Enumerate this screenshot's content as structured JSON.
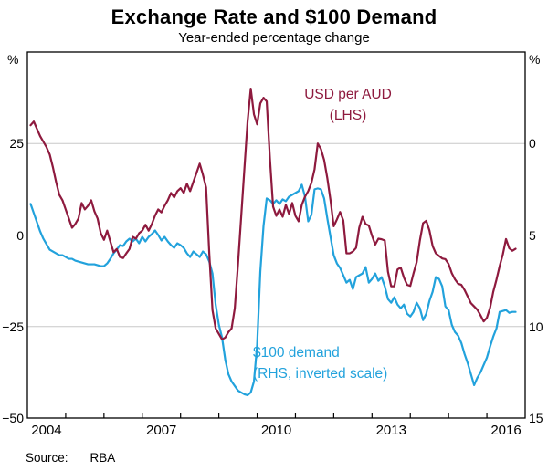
{
  "title": "Exchange Rate and $100 Demand",
  "subtitle": "Year-ended percentage change",
  "footer": {
    "source_label": "Source:",
    "source_value": "RBA"
  },
  "colors": {
    "usd_per_aud": "#8E1A3E",
    "demand": "#22A2DC",
    "grid": "#C8C8C8",
    "frame": "#000000"
  },
  "chart_data": {
    "type": "line",
    "x_range": {
      "start_year": 2004,
      "end_year": 2017
    },
    "x_tick_years": [
      2005,
      2006,
      2007,
      2008,
      2009,
      2010,
      2011,
      2012,
      2013,
      2014,
      2015,
      2016
    ],
    "x_tick_labels": [
      "2004",
      "2007",
      "2010",
      "2013",
      "2016"
    ],
    "x_tick_label_years": [
      2004,
      2007,
      2010,
      2013,
      2016
    ],
    "left_axis": {
      "unit": "%",
      "min": -50,
      "max": 50,
      "tick_values": [
        25,
        0,
        -25,
        -50
      ],
      "tick_labels": [
        "25",
        "0",
        "−25",
        "−50"
      ]
    },
    "right_axis": {
      "unit": "%",
      "inverted": true,
      "tick_values": [
        0,
        5,
        10,
        15
      ],
      "tick_labels": [
        "0",
        "5",
        "10",
        "15"
      ],
      "mapping_note": "right value r plots at left-axis value 25 − 5r (inverted scale)"
    },
    "gridlines_at_left_values": [
      25,
      0,
      -25
    ],
    "series": [
      {
        "name": "USD per AUD (LHS)",
        "axis": "left",
        "color": "#8E1A3E",
        "start": "2004-02",
        "frequency": "monthly",
        "values": [
          30,
          31,
          29,
          27,
          25.5,
          24,
          22,
          18.5,
          14.5,
          11,
          9.5,
          7,
          4.5,
          2,
          3,
          4.5,
          8.75,
          7,
          8,
          9.5,
          6.5,
          4.5,
          0.5,
          -1.3,
          1.2,
          -1.8,
          -4.7,
          -3.8,
          -6,
          -6.3,
          -5,
          -3.8,
          -0.5,
          -1,
          0.5,
          1.2,
          2.8,
          1.2,
          3,
          5.3,
          7,
          6.2,
          8,
          9.5,
          11.5,
          10.3,
          12,
          12.8,
          11.5,
          14,
          12,
          14.5,
          17,
          19.5,
          16.5,
          13,
          -5,
          -20.5,
          -25.5,
          -27,
          -28.5,
          -28,
          -26.5,
          -25.5,
          -20,
          -8,
          5,
          18,
          31,
          40,
          33,
          30.25,
          36,
          37.5,
          36.5,
          21,
          7.75,
          5.25,
          7,
          5,
          8.25,
          5.75,
          8.75,
          5.25,
          3.75,
          8.25,
          10.5,
          12,
          14.25,
          18,
          25,
          23.5,
          20.5,
          15.5,
          9.5,
          2.4,
          4.25,
          6.3,
          4,
          -5,
          -5,
          -4.5,
          -3.5,
          2,
          5,
          3,
          2.6,
          -0.2,
          -2.6,
          -1,
          -1.15,
          -1.5,
          -10,
          -14,
          -14,
          -9.4,
          -8.9,
          -11.6,
          -13.6,
          -13.9,
          -10.5,
          -7.4,
          -1.5,
          3.25,
          3.9,
          1.25,
          -3,
          -5,
          -5.7,
          -6.4,
          -6.6,
          -7.9,
          -10.4,
          -12.1,
          -13.3,
          -13.6,
          -15,
          -16.8,
          -18.6,
          -19.5,
          -20.4,
          -21.9,
          -23.6,
          -22.6,
          -19.9,
          -15.5,
          -12.2,
          -8.5,
          -5.3,
          -1.1,
          -3.6,
          -4.3,
          -3.75
        ]
      },
      {
        "name": "$100 demand (RHS, inverted scale)",
        "axis": "right",
        "color": "#22A2DC",
        "start": "2004-02",
        "frequency": "monthly",
        "values": [
          3.3,
          3.8,
          4.3,
          4.8,
          5.2,
          5.5,
          5.8,
          5.9,
          6.0,
          6.1,
          6.1,
          6.2,
          6.3,
          6.3,
          6.4,
          6.45,
          6.5,
          6.55,
          6.6,
          6.6,
          6.6,
          6.65,
          6.7,
          6.7,
          6.55,
          6.3,
          6.0,
          5.8,
          5.55,
          5.6,
          5.35,
          5.2,
          5.35,
          5.2,
          5.45,
          5.1,
          5.35,
          5.1,
          4.95,
          4.75,
          5.0,
          5.3,
          5.1,
          5.35,
          5.55,
          5.7,
          5.45,
          5.55,
          5.7,
          6.0,
          6.2,
          5.9,
          6.05,
          6.2,
          5.9,
          6.05,
          6.45,
          7.1,
          8.8,
          9.9,
          10.6,
          11.8,
          12.6,
          13.0,
          13.25,
          13.5,
          13.6,
          13.7,
          13.75,
          13.6,
          13.0,
          11.0,
          7.0,
          4.5,
          3.0,
          3.1,
          3.3,
          3.1,
          3.3,
          3.05,
          3.15,
          2.9,
          2.8,
          2.7,
          2.6,
          2.25,
          2.9,
          4.25,
          3.9,
          2.5,
          2.45,
          2.5,
          3.0,
          4.1,
          5.1,
          6.1,
          6.55,
          6.8,
          7.2,
          7.6,
          7.45,
          7.95,
          7.3,
          7.2,
          7.1,
          6.75,
          7.6,
          7.4,
          7.1,
          7.5,
          7.3,
          7.8,
          8.5,
          8.7,
          8.4,
          8.8,
          9.0,
          8.8,
          9.3,
          9.45,
          9.2,
          8.7,
          9.0,
          9.65,
          9.3,
          8.6,
          8.1,
          7.3,
          7.4,
          7.8,
          8.9,
          9.1,
          9.9,
          10.3,
          10.5,
          10.9,
          11.5,
          12.0,
          12.6,
          13.2,
          12.8,
          12.5,
          12.1,
          11.7,
          11.1,
          10.55,
          10.1,
          9.2,
          9.15,
          9.1,
          9.25,
          9.2,
          9.2
        ]
      }
    ],
    "annotations": [
      {
        "series": "usd-per-aud",
        "color": "#8E1A3E",
        "lines": [
          "USD per AUD",
          "(LHS)"
        ]
      },
      {
        "series": "demand",
        "color": "#22A2DC",
        "lines": [
          "$100 demand",
          "(RHS, inverted scale)"
        ]
      }
    ]
  }
}
